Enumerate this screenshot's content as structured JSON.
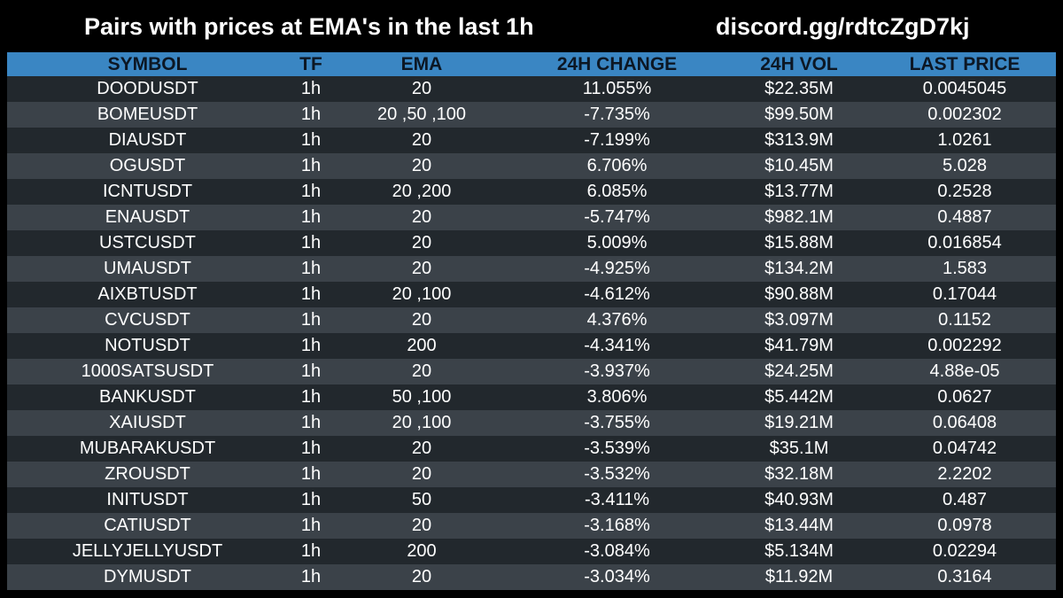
{
  "header": {
    "title": "Pairs with prices at EMA's in the last 1h",
    "invite": "discord.gg/rdtcZgD7kj"
  },
  "colors": {
    "background": "#000000",
    "header_row": "#3a86c3",
    "row_dark": "#22282d",
    "row_light": "#3b4249",
    "text": "#ffffff"
  },
  "table": {
    "columns": [
      "SYMBOL",
      "TF",
      "EMA",
      "24H CHANGE",
      "24H VOL",
      "LAST PRICE"
    ],
    "rows": [
      [
        "DOODUSDT",
        "1h",
        "20",
        "11.055%",
        "$22.35M",
        "0.0045045"
      ],
      [
        "BOMEUSDT",
        "1h",
        "20 ,50 ,100",
        "-7.735%",
        "$99.50M",
        "0.002302"
      ],
      [
        "DIAUSDT",
        "1h",
        "20",
        "-7.199%",
        "$313.9M",
        "1.0261"
      ],
      [
        "OGUSDT",
        "1h",
        "20",
        "6.706%",
        "$10.45M",
        "5.028"
      ],
      [
        "ICNTUSDT",
        "1h",
        "20 ,200",
        "6.085%",
        "$13.77M",
        "0.2528"
      ],
      [
        "ENAUSDT",
        "1h",
        "20",
        "-5.747%",
        "$982.1M",
        "0.4887"
      ],
      [
        "USTCUSDT",
        "1h",
        "20",
        "5.009%",
        "$15.88M",
        "0.016854"
      ],
      [
        "UMAUSDT",
        "1h",
        "20",
        "-4.925%",
        "$134.2M",
        "1.583"
      ],
      [
        "AIXBTUSDT",
        "1h",
        "20 ,100",
        "-4.612%",
        "$90.88M",
        "0.17044"
      ],
      [
        "CVCUSDT",
        "1h",
        "20",
        "4.376%",
        "$3.097M",
        "0.1152"
      ],
      [
        "NOTUSDT",
        "1h",
        "200",
        "-4.341%",
        "$41.79M",
        "0.002292"
      ],
      [
        "1000SATSUSDT",
        "1h",
        "20",
        "-3.937%",
        "$24.25M",
        "4.88e-05"
      ],
      [
        "BANKUSDT",
        "1h",
        "50 ,100",
        "3.806%",
        "$5.442M",
        "0.0627"
      ],
      [
        "XAIUSDT",
        "1h",
        "20 ,100",
        "-3.755%",
        "$19.21M",
        "0.06408"
      ],
      [
        "MUBARAKUSDT",
        "1h",
        "20",
        "-3.539%",
        "$35.1M",
        "0.04742"
      ],
      [
        "ZROUSDT",
        "1h",
        "20",
        "-3.532%",
        "$32.18M",
        "2.2202"
      ],
      [
        "INITUSDT",
        "1h",
        "50",
        "-3.411%",
        "$40.93M",
        "0.487"
      ],
      [
        "CATIUSDT",
        "1h",
        "20",
        "-3.168%",
        "$13.44M",
        "0.0978"
      ],
      [
        "JELLYJELLYUSDT",
        "1h",
        "200",
        "-3.084%",
        "$5.134M",
        "0.02294"
      ],
      [
        "DYMUSDT",
        "1h",
        "20",
        "-3.034%",
        "$11.92M",
        "0.3164"
      ]
    ]
  }
}
